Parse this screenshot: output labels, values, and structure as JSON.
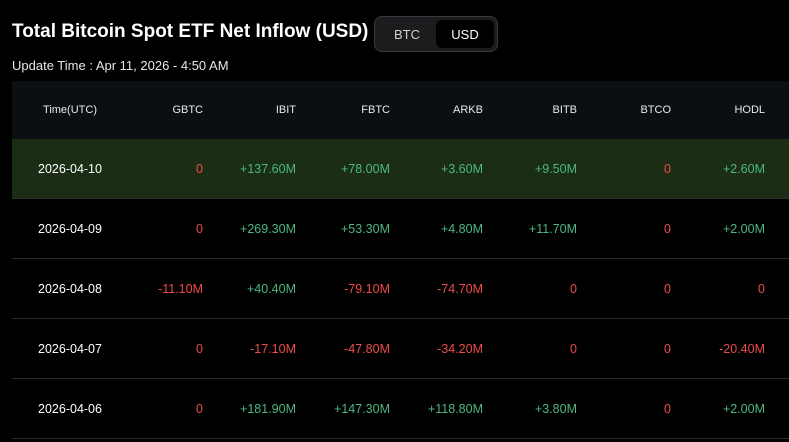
{
  "header": {
    "title": "Total Bitcoin Spot ETF Net Inflow (USD)",
    "update_time": "Update Time : Apr 11, 2026 - 4:50 AM",
    "toggle": {
      "options": [
        "BTC",
        "USD"
      ],
      "selected": "USD"
    }
  },
  "table": {
    "columns": [
      "Time(UTC)",
      "GBTC",
      "IBIT",
      "FBTC",
      "ARKB",
      "BITB",
      "BTCO",
      "HODL"
    ],
    "rows": [
      {
        "date": "2026-04-10",
        "values": [
          "0",
          "+137.60M",
          "+78.00M",
          "+3.60M",
          "+9.50M",
          "0",
          "+2.60M"
        ],
        "highlight": true
      },
      {
        "date": "2026-04-09",
        "values": [
          "0",
          "+269.30M",
          "+53.30M",
          "+4.80M",
          "+11.70M",
          "0",
          "+2.00M"
        ]
      },
      {
        "date": "2026-04-08",
        "values": [
          "-11.10M",
          "+40.40M",
          "-79.10M",
          "-74.70M",
          "0",
          "0",
          "0"
        ]
      },
      {
        "date": "2026-04-07",
        "values": [
          "0",
          "-17.10M",
          "-47.80M",
          "-34.20M",
          "0",
          "0",
          "-20.40M"
        ]
      },
      {
        "date": "2026-04-06",
        "values": [
          "0",
          "+181.90M",
          "+147.30M",
          "+118.80M",
          "+3.80M",
          "0",
          "+2.00M"
        ]
      }
    ]
  },
  "colors": {
    "positive": "#4cb782",
    "negative": "#ef4a4a",
    "highlight_row": "#1b2e15",
    "header_bg": "#0c0f12",
    "background": "#000000"
  }
}
